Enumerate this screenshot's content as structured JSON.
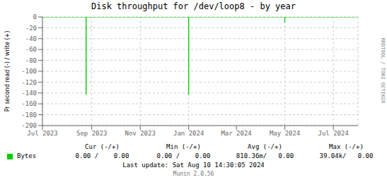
{
  "chart_data": {
    "type": "line",
    "title": "Disk throughput for /dev/loop8 - by year",
    "ylabel": "Pr second read (-) / write (+)",
    "xlim": [
      1688169600,
      1722470400
    ],
    "ylim": [
      -200,
      0
    ],
    "xticks": [
      {
        "value": 1688169600,
        "label": "Jul 2023"
      },
      {
        "value": 1693526400,
        "label": "Sep 2023"
      },
      {
        "value": 1698796800,
        "label": "Nov 2023"
      },
      {
        "value": 1704067200,
        "label": "Jan 2024"
      },
      {
        "value": 1709251200,
        "label": "Mar 2024"
      },
      {
        "value": 1714521600,
        "label": "May 2024"
      },
      {
        "value": 1719792000,
        "label": "Jul 2024"
      }
    ],
    "yticks": [
      0,
      -20,
      -40,
      -60,
      -80,
      -100,
      -120,
      -140,
      -160,
      -180,
      -200
    ],
    "grid": true,
    "series": [
      {
        "name": "Bytes",
        "color": "#00cc00",
        "x": [
          1688169600,
          1692921600,
          1692921600,
          1692921600,
          1704067200,
          1704067200,
          1704067200,
          1714521600,
          1714521600,
          1714521600,
          1722470400
        ],
        "values": [
          0,
          0,
          -143,
          0,
          0,
          -143,
          0,
          0,
          -10,
          0,
          0
        ]
      }
    ],
    "stats": [
      {
        "label": "Cur (-/+)",
        "value": "0.00 /    0.00"
      },
      {
        "label": "Min (-/+)",
        "value": "0.00 /    0.00"
      },
      {
        "label": "Avg (-/+)",
        "value": "810.36m/   0.00"
      },
      {
        "label": "Max (-/+)",
        "value": "39.04k/   0.00"
      }
    ],
    "annotations": [
      "Last update: Sat Aug 10 14:30:05 2024",
      "Munin 2.0.56",
      "RRDTOOL / TOBI OETIKER"
    ]
  }
}
